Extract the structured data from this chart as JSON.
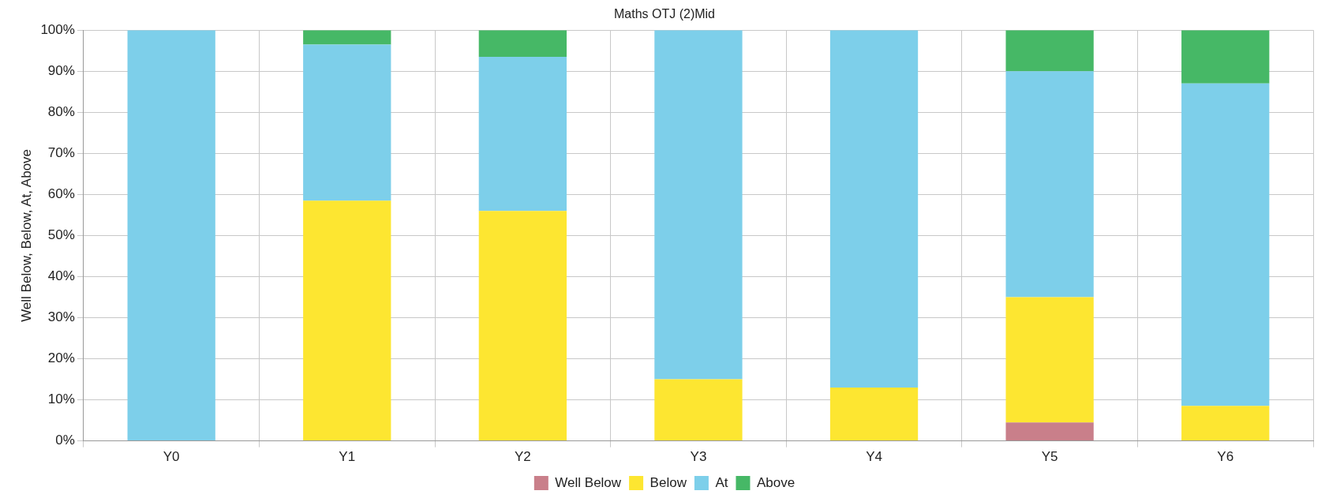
{
  "chart_data": {
    "type": "bar",
    "title": "Maths OTJ (2)Mid",
    "ylabel": "Well Below, Below, At, Above",
    "stacked": true,
    "grid": true,
    "legend": "bottom",
    "categories": [
      "Y0",
      "Y1",
      "Y2",
      "Y3",
      "Y4",
      "Y5",
      "Y6"
    ],
    "series": [
      {
        "name": "Well Below",
        "color": "#c97f8a",
        "values": [
          0,
          0,
          0,
          0,
          0,
          4.5,
          0
        ]
      },
      {
        "name": "Below",
        "color": "#fde631",
        "values": [
          0,
          58.5,
          56,
          15,
          13,
          30.5,
          8.5
        ]
      },
      {
        "name": "At",
        "color": "#7dcfea",
        "values": [
          100,
          38,
          37.5,
          85,
          87,
          55,
          78.5
        ]
      },
      {
        "name": "Above",
        "color": "#46b866",
        "values": [
          0,
          3.5,
          6.5,
          0,
          0,
          10,
          13
        ]
      }
    ],
    "ylim": [
      0,
      100
    ],
    "yticks": [
      {
        "value": 0,
        "label": "0%"
      },
      {
        "value": 10,
        "label": "10%"
      },
      {
        "value": 20,
        "label": "20%"
      },
      {
        "value": 30,
        "label": "30%"
      },
      {
        "value": 40,
        "label": "40%"
      },
      {
        "value": 50,
        "label": "50%"
      },
      {
        "value": 60,
        "label": "60%"
      },
      {
        "value": 70,
        "label": "70%"
      },
      {
        "value": 80,
        "label": "80%"
      },
      {
        "value": 90,
        "label": "90%"
      },
      {
        "value": 100,
        "label": "100%"
      }
    ]
  }
}
